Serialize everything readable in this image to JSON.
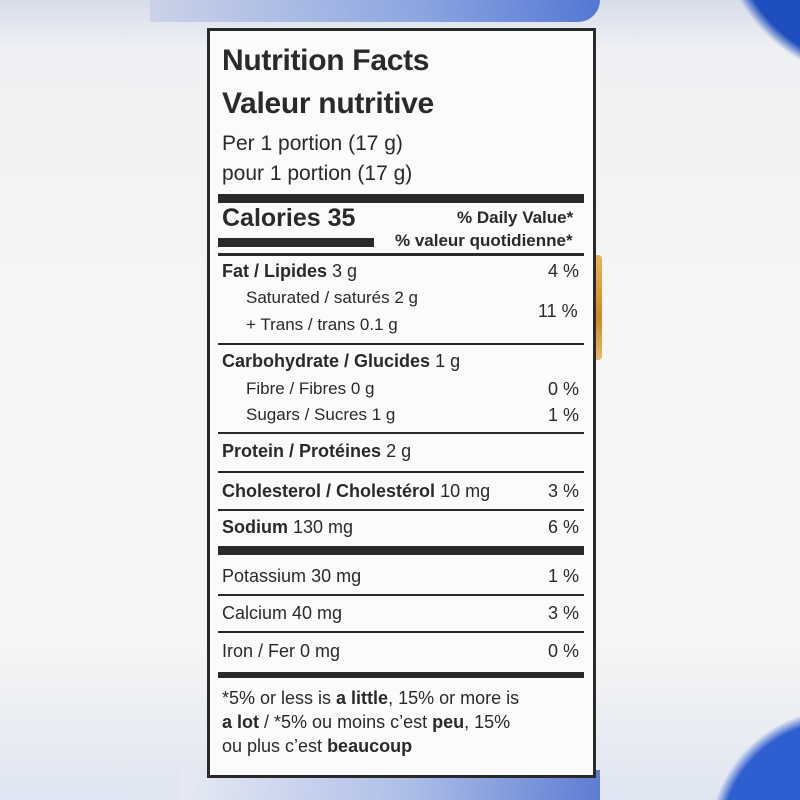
{
  "label": {
    "title_en": "Nutrition Facts",
    "title_fr": "Valeur nutritive",
    "serving_en": "Per 1 portion (17 g)",
    "serving_fr": "pour 1 portion (17 g)",
    "calories_label": "Calories 35",
    "dv_header_en": "% Daily Value*",
    "dv_header_fr": "% valeur quotidienne*",
    "fat": {
      "label": "Fat / Lipides",
      "amount": "3 g",
      "dv": "4 %"
    },
    "saturated": {
      "label": "Saturated / saturés",
      "amount": "2 g"
    },
    "trans": {
      "label": "+ Trans / trans",
      "amount": "0.1 g"
    },
    "sat_trans_dv": "11 %",
    "carbohydrate": {
      "label": "Carbohydrate / Glucides",
      "amount": "1 g"
    },
    "fibre": {
      "label": "Fibre / Fibres",
      "amount": "0 g",
      "dv": "0 %"
    },
    "sugars": {
      "label": "Sugars / Sucres",
      "amount": "1 g",
      "dv": "1 %"
    },
    "protein": {
      "label": "Protein / Protéines",
      "amount": "2 g"
    },
    "cholesterol": {
      "label": "Cholesterol / Cholestérol",
      "amount": "10 mg",
      "dv": "3 %"
    },
    "sodium": {
      "label": "Sodium",
      "amount": "130 mg",
      "dv": "6 %"
    },
    "potassium": {
      "label": "Potassium",
      "amount": "30 mg",
      "dv": "1 %"
    },
    "calcium": {
      "label": "Calcium",
      "amount": "40 mg",
      "dv": "3 %"
    },
    "iron": {
      "label": "Iron / Fer",
      "amount": "0 mg",
      "dv": "0 %"
    },
    "footnote": {
      "p1": "*5% or less is ",
      "b1": "a little",
      "p2": ", 15% or more is",
      "b2": "a lot",
      "p3": " / *5% ou moins c’est ",
      "b3": "peu",
      "p4": ", 15%",
      "p5": "ou plus c’est ",
      "b4": "beaucoup"
    }
  },
  "colors": {
    "ink": "#2a2a2a",
    "panel": "#fbfbfa",
    "accent_blue": "#2e5fd0"
  }
}
